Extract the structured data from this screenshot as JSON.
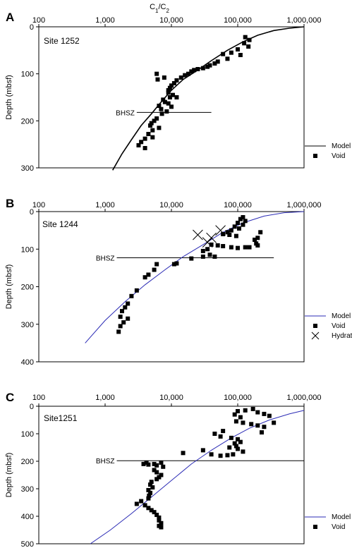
{
  "figure": {
    "x_axis_title": "C1/C2",
    "y_axis_title": "Depth (mbsf)",
    "x_tick_labels": [
      "100",
      "1,000",
      "10,000",
      "100,000",
      "1,000,000"
    ],
    "colors": {
      "frame": "#000000",
      "model_line_a": "#000000",
      "model_line_bc": "#2b2bb5",
      "marker": "#000000"
    }
  },
  "chart_data": [
    {
      "type": "scatter",
      "panel": "A",
      "site_label": "Site 1252",
      "bhsz_label": "BHSZ",
      "bhsz_depth": 182,
      "bhsz_x_range": [
        3000,
        40000
      ],
      "x_scale": "log",
      "xlim": [
        100,
        1000000
      ],
      "ylim": [
        300,
        0
      ],
      "y_ticks": [
        0,
        100,
        200,
        300
      ],
      "x_ticks": [
        100,
        1000,
        10000,
        100000,
        1000000
      ],
      "legend": {
        "placement": "bottom-right",
        "entries": [
          "Model",
          "Void"
        ]
      },
      "series": [
        {
          "name": "Model",
          "kind": "line",
          "points": [
            [
              1300,
              305
            ],
            [
              1800,
              270
            ],
            [
              2500,
              240
            ],
            [
              3500,
              210
            ],
            [
              5000,
              185
            ],
            [
              7000,
              160
            ],
            [
              10000,
              135
            ],
            [
              15000,
              112
            ],
            [
              25000,
              92
            ],
            [
              40000,
              72
            ],
            [
              70000,
              50
            ],
            [
              120000,
              32
            ],
            [
              200000,
              18
            ],
            [
              350000,
              8
            ],
            [
              600000,
              3
            ],
            [
              1000000,
              0
            ]
          ]
        },
        {
          "name": "Void",
          "kind": "marker",
          "points": [
            [
              130000,
              22
            ],
            [
              150000,
              28
            ],
            [
              125000,
              35
            ],
            [
              145000,
              42
            ],
            [
              100000,
              48
            ],
            [
              80000,
              55
            ],
            [
              60000,
              58
            ],
            [
              110000,
              60
            ],
            [
              70000,
              68
            ],
            [
              50000,
              74
            ],
            [
              45000,
              78
            ],
            [
              38000,
              82
            ],
            [
              35000,
              85
            ],
            [
              30000,
              88
            ],
            [
              25000,
              90
            ],
            [
              22000,
              92
            ],
            [
              20000,
              95
            ],
            [
              18000,
              100
            ],
            [
              16000,
              103
            ],
            [
              14000,
              108
            ],
            [
              12000,
              114
            ],
            [
              11000,
              120
            ],
            [
              10000,
              125
            ],
            [
              9500,
              130
            ],
            [
              9000,
              135
            ],
            [
              9000,
              140
            ],
            [
              10500,
              145
            ],
            [
              9500,
              150
            ],
            [
              7500,
              155
            ],
            [
              8000,
              160
            ],
            [
              9000,
              163
            ],
            [
              6500,
              168
            ],
            [
              7000,
              175
            ],
            [
              7200,
              185
            ],
            [
              6000,
              195
            ],
            [
              5500,
              200
            ],
            [
              5000,
              205
            ],
            [
              4800,
              210
            ],
            [
              5200,
              220
            ],
            [
              4500,
              228
            ],
            [
              4000,
              238
            ],
            [
              3500,
              245
            ],
            [
              3200,
              252
            ],
            [
              4000,
              258
            ],
            [
              5200,
              235
            ],
            [
              6500,
              215
            ],
            [
              6000,
              100
            ],
            [
              6200,
              112
            ],
            [
              7800,
              108
            ],
            [
              10000,
              170
            ],
            [
              8500,
              180
            ],
            [
              12000,
              150
            ]
          ]
        }
      ]
    },
    {
      "type": "scatter",
      "panel": "B",
      "site_label": "Site 1244",
      "bhsz_label": "BHSZ",
      "bhsz_depth": 123,
      "bhsz_x_range": [
        1500,
        350000
      ],
      "x_scale": "log",
      "xlim": [
        100,
        1000000
      ],
      "ylim": [
        400,
        0
      ],
      "y_ticks": [
        0,
        100,
        200,
        300,
        400
      ],
      "x_ticks": [
        100,
        1000,
        10000,
        100000,
        1000000
      ],
      "legend": {
        "placement": "bottom-right",
        "entries": [
          "Model",
          "Void",
          "Hydrate"
        ]
      },
      "series": [
        {
          "name": "Model",
          "kind": "line",
          "points": [
            [
              500,
              350
            ],
            [
              1000,
              290
            ],
            [
              2000,
              240
            ],
            [
              4000,
              195
            ],
            [
              8000,
              155
            ],
            [
              15000,
              120
            ],
            [
              30000,
              88
            ],
            [
              60000,
              55
            ],
            [
              120000,
              30
            ],
            [
              250000,
              12
            ],
            [
              500000,
              3
            ],
            [
              1000000,
              0
            ]
          ]
        },
        {
          "name": "Void",
          "kind": "marker",
          "points": [
            [
              120000,
              15
            ],
            [
              110000,
              20
            ],
            [
              130000,
              25
            ],
            [
              100000,
              30
            ],
            [
              120000,
              35
            ],
            [
              90000,
              40
            ],
            [
              105000,
              45
            ],
            [
              80000,
              50
            ],
            [
              70000,
              55
            ],
            [
              60000,
              60
            ],
            [
              75000,
              62
            ],
            [
              95000,
              65
            ],
            [
              220000,
              55
            ],
            [
              200000,
              70
            ],
            [
              180000,
              75
            ],
            [
              190000,
              85
            ],
            [
              200000,
              90
            ],
            [
              150000,
              95
            ],
            [
              130000,
              95
            ],
            [
              100000,
              97
            ],
            [
              80000,
              95
            ],
            [
              60000,
              92
            ],
            [
              50000,
              90
            ],
            [
              40000,
              88
            ],
            [
              35000,
              100
            ],
            [
              30000,
              105
            ],
            [
              38000,
              115
            ],
            [
              45000,
              120
            ],
            [
              30000,
              120
            ],
            [
              20000,
              125
            ],
            [
              12000,
              138
            ],
            [
              11000,
              140
            ],
            [
              6000,
              140
            ],
            [
              5500,
              155
            ],
            [
              4500,
              168
            ],
            [
              4000,
              175
            ],
            [
              3000,
              210
            ],
            [
              2500,
              225
            ],
            [
              2200,
              245
            ],
            [
              2000,
              255
            ],
            [
              1800,
              265
            ],
            [
              1700,
              280
            ],
            [
              2200,
              285
            ],
            [
              1900,
              295
            ],
            [
              1700,
              305
            ],
            [
              1600,
              320
            ]
          ]
        },
        {
          "name": "Hydrate",
          "kind": "cross",
          "points": [
            [
              25000,
              62
            ],
            [
              55000,
              50
            ],
            [
              40000,
              70
            ],
            [
              35000,
              82
            ]
          ]
        }
      ]
    },
    {
      "type": "scatter",
      "panel": "C",
      "site_label": "Site1251",
      "bhsz_label": "BHSZ",
      "bhsz_depth": 198,
      "bhsz_x_range": [
        1500,
        1000000
      ],
      "x_scale": "log",
      "xlim": [
        100,
        1000000
      ],
      "ylim": [
        500,
        0
      ],
      "y_ticks": [
        0,
        100,
        200,
        300,
        400,
        500
      ],
      "x_ticks": [
        100,
        1000,
        10000,
        100000,
        1000000
      ],
      "legend": {
        "placement": "bottom-right",
        "entries": [
          "Model",
          "Void"
        ]
      },
      "series": [
        {
          "name": "Model",
          "kind": "line",
          "points": [
            [
              600,
              500
            ],
            [
              1200,
              450
            ],
            [
              2500,
              390
            ],
            [
              5000,
              330
            ],
            [
              10000,
              270
            ],
            [
              20000,
              210
            ],
            [
              40000,
              160
            ],
            [
              80000,
              115
            ],
            [
              150000,
              80
            ],
            [
              300000,
              50
            ],
            [
              600000,
              28
            ],
            [
              1000000,
              15
            ]
          ]
        },
        {
          "name": "Void",
          "kind": "marker",
          "points": [
            [
              170000,
              10
            ],
            [
              130000,
              15
            ],
            [
              100000,
              18
            ],
            [
              200000,
              22
            ],
            [
              250000,
              28
            ],
            [
              300000,
              35
            ],
            [
              90000,
              30
            ],
            [
              110000,
              40
            ],
            [
              95000,
              55
            ],
            [
              120000,
              60
            ],
            [
              160000,
              65
            ],
            [
              200000,
              70
            ],
            [
              250000,
              75
            ],
            [
              350000,
              60
            ],
            [
              230000,
              95
            ],
            [
              60000,
              90
            ],
            [
              45000,
              100
            ],
            [
              55000,
              110
            ],
            [
              80000,
              115
            ],
            [
              100000,
              120
            ],
            [
              110000,
              130
            ],
            [
              90000,
              135
            ],
            [
              95000,
              145
            ],
            [
              75000,
              150
            ],
            [
              100000,
              155
            ],
            [
              120000,
              165
            ],
            [
              85000,
              175
            ],
            [
              70000,
              178
            ],
            [
              55000,
              180
            ],
            [
              15000,
              170
            ],
            [
              30000,
              160
            ],
            [
              40000,
              175
            ],
            [
              7000,
              205
            ],
            [
              5500,
              210
            ],
            [
              4500,
              212
            ],
            [
              6000,
              215
            ],
            [
              7500,
              220
            ],
            [
              5500,
              232
            ],
            [
              6000,
              240
            ],
            [
              7000,
              250
            ],
            [
              6500,
              258
            ],
            [
              6000,
              265
            ],
            [
              5000,
              275
            ],
            [
              4800,
              285
            ],
            [
              5200,
              295
            ],
            [
              4500,
              305
            ],
            [
              4800,
              315
            ],
            [
              4600,
              325
            ],
            [
              4500,
              335
            ],
            [
              3500,
              345
            ],
            [
              3000,
              355
            ],
            [
              4000,
              360
            ],
            [
              4500,
              370
            ],
            [
              5000,
              378
            ],
            [
              5500,
              385
            ],
            [
              6000,
              395
            ],
            [
              6500,
              405
            ],
            [
              6500,
              415
            ],
            [
              7000,
              425
            ],
            [
              6500,
              435
            ],
            [
              7000,
              440
            ],
            [
              3800,
              210
            ],
            [
              4200,
              205
            ]
          ]
        }
      ]
    }
  ]
}
